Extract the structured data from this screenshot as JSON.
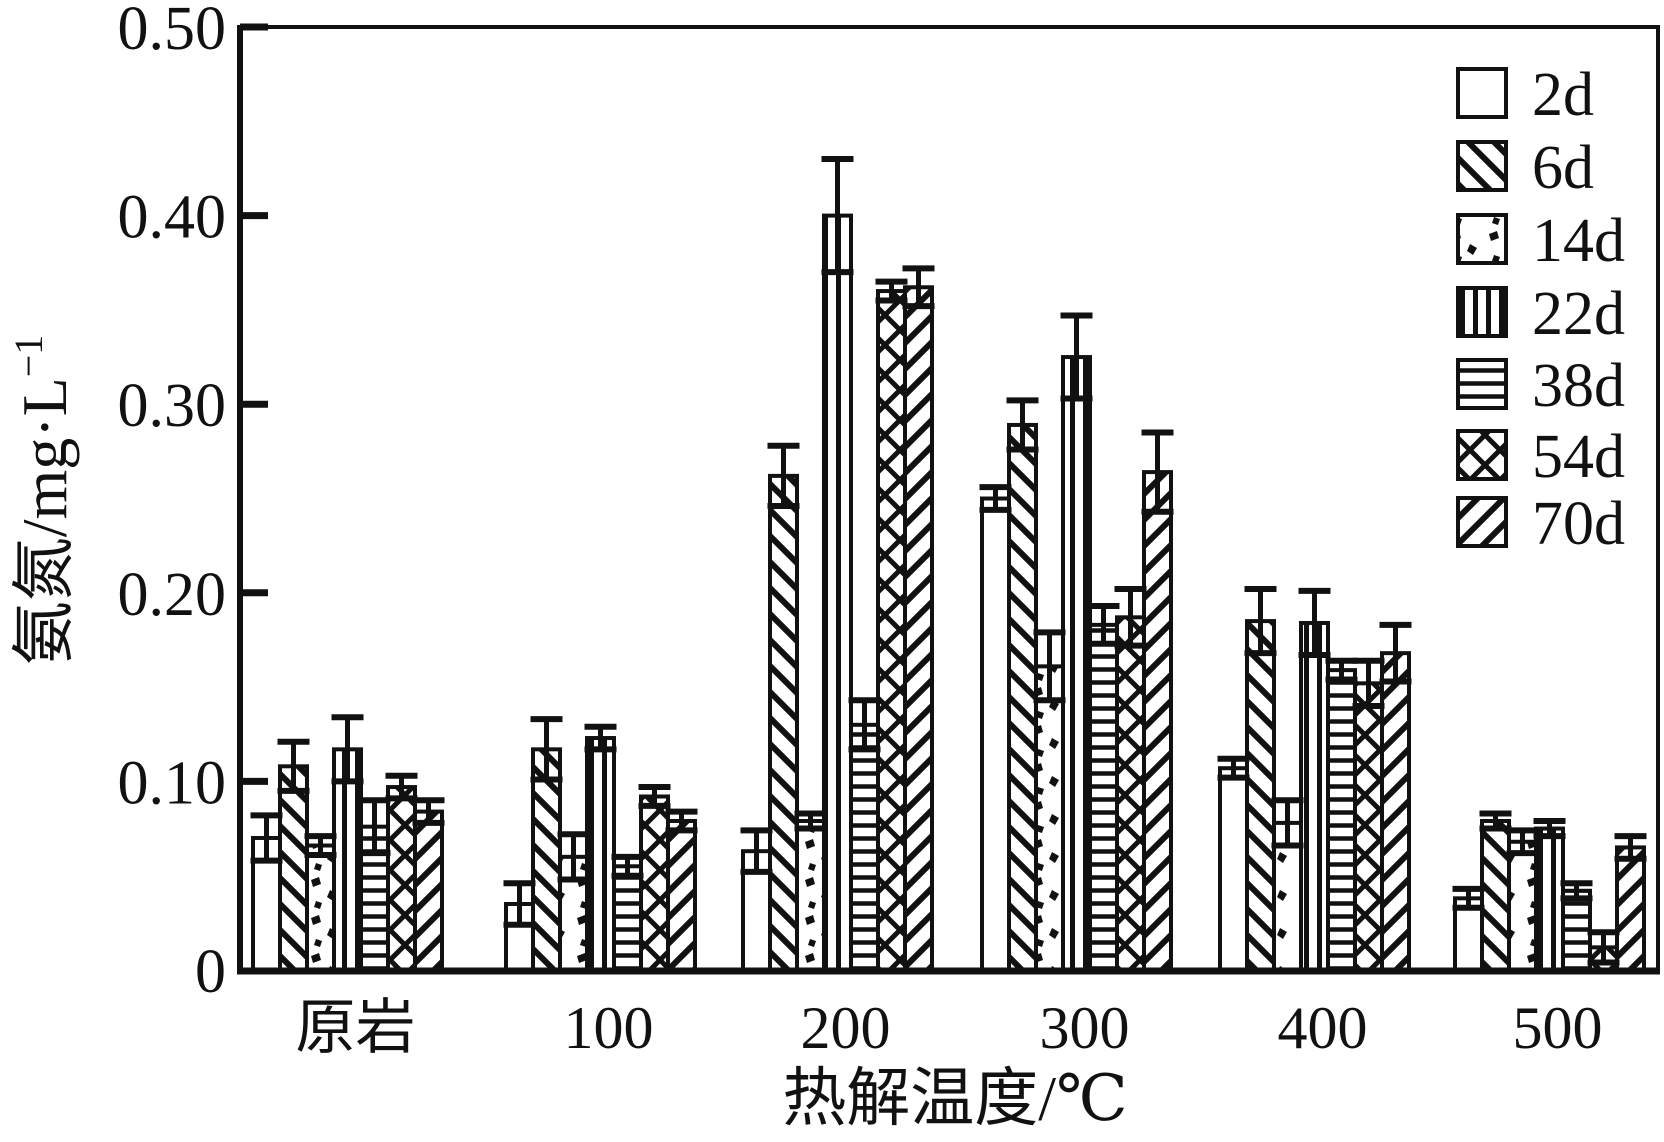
{
  "figure": {
    "background": "#ffffff",
    "ink_color": "#111111"
  },
  "chart_data": {
    "type": "bar",
    "title": "",
    "xlabel": "热解温度/℃",
    "ylabel": "氨氮/mg·L⁻¹",
    "ylabel_base": "氨氮/mg·L",
    "ylabel_sup": "−1",
    "categories": [
      "原岩",
      "100",
      "200",
      "300",
      "400",
      "500"
    ],
    "ylim": [
      0,
      0.5
    ],
    "yticks": [
      0,
      0.1,
      0.2,
      0.3,
      0.4,
      0.5
    ],
    "ytick_labels": [
      "0",
      "0.10",
      "0.20",
      "0.30",
      "0.40",
      "0.50"
    ],
    "grid": false,
    "error_bars": true,
    "legend_position": "top-right-inside",
    "series": [
      {
        "name": "2d",
        "pattern": "none",
        "values": [
          0.07,
          0.035,
          0.063,
          0.25,
          0.107,
          0.038
        ],
        "errors": [
          0.012,
          0.011,
          0.011,
          0.006,
          0.005,
          0.005
        ]
      },
      {
        "name": "6d",
        "pattern": "diagonal-backslash",
        "values": [
          0.108,
          0.117,
          0.262,
          0.289,
          0.185,
          0.079
        ],
        "errors": [
          0.013,
          0.016,
          0.016,
          0.013,
          0.017,
          0.004
        ]
      },
      {
        "name": "14d",
        "pattern": "dots",
        "values": [
          0.066,
          0.06,
          0.079,
          0.161,
          0.078,
          0.068
        ],
        "errors": [
          0.005,
          0.012,
          0.004,
          0.018,
          0.012,
          0.006
        ]
      },
      {
        "name": "22d",
        "pattern": "vertical-lines",
        "values": [
          0.117,
          0.123,
          0.4,
          0.325,
          0.184,
          0.075
        ],
        "errors": [
          0.017,
          0.006,
          0.03,
          0.022,
          0.017,
          0.004
        ]
      },
      {
        "name": "38d",
        "pattern": "horizontal-lines",
        "values": [
          0.076,
          0.055,
          0.13,
          0.183,
          0.159,
          0.042
        ],
        "errors": [
          0.014,
          0.005,
          0.013,
          0.01,
          0.005,
          0.004
        ]
      },
      {
        "name": "54d",
        "pattern": "diagonal-crosshatch",
        "values": [
          0.097,
          0.092,
          0.36,
          0.187,
          0.152,
          0.012
        ],
        "errors": [
          0.006,
          0.005,
          0.005,
          0.015,
          0.012,
          0.008
        ]
      },
      {
        "name": "70d",
        "pattern": "diagonal-slash",
        "values": [
          0.084,
          0.079,
          0.362,
          0.264,
          0.168,
          0.065
        ],
        "errors": [
          0.006,
          0.005,
          0.01,
          0.021,
          0.015,
          0.006
        ]
      }
    ]
  }
}
